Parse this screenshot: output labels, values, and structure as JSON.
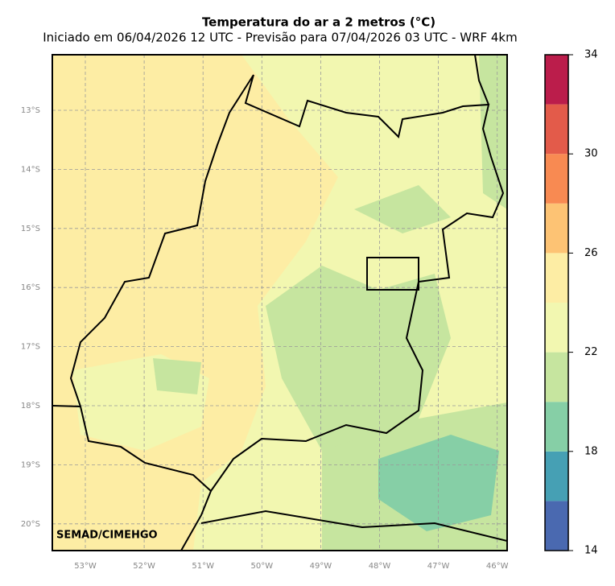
{
  "map": {
    "title": "Temperatura do ar a 2 metros (°C)",
    "subtitle": "Iniciado em 06/04/2026 12 UTC - Previsão para 07/04/2026 03 UTC - WRF 4km",
    "lon_labels": [
      "53°W",
      "52°W",
      "51°W",
      "50°W",
      "49°W",
      "48°W",
      "47°W",
      "46°W"
    ],
    "lat_labels": [
      "13°S",
      "14°S",
      "15°S",
      "16°S",
      "17°S",
      "18°S",
      "19°S",
      "20°S"
    ],
    "credit": "SEMAD/CIMEHGO",
    "colorbar": {
      "levels": [
        14,
        16,
        18,
        20,
        22,
        24,
        26,
        28,
        30,
        32,
        34
      ],
      "colors": [
        "#4a69b0",
        "#46a0b4",
        "#86cfa6",
        "#c6e59f",
        "#f2f7b0",
        "#fdeda4",
        "#fdc374",
        "#f88a52",
        "#e35b4a",
        "#bb1d4b"
      ],
      "ticks": [
        14,
        18,
        22,
        26,
        30,
        34
      ]
    }
  }
}
